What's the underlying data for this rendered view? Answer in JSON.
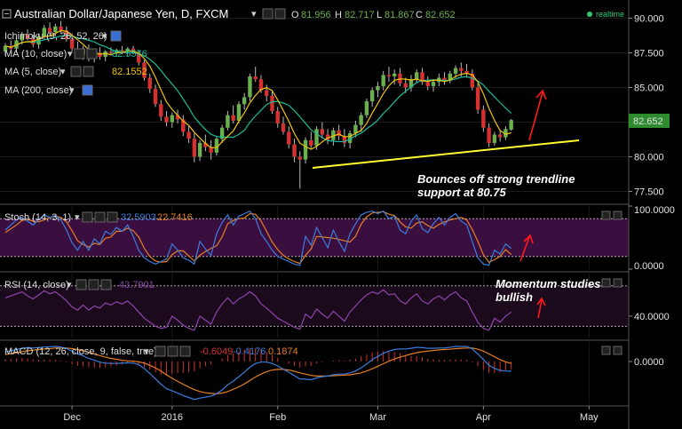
{
  "header": {
    "symbol": "Australian Dollar/Japanese Yen, D, FXCM",
    "o_label": "O",
    "o": "81.956",
    "h_label": "H",
    "h": "82.717",
    "l_label": "L",
    "l": "81.867",
    "c_label": "C",
    "c": "82.652",
    "realtime": "realtime"
  },
  "indicators": {
    "ichimoku": "Ichimoku (9, 26, 52, 26)",
    "ma10": "MA (10, close)",
    "ma10_value": "82.5576",
    "ma5": "MA (5, close)",
    "ma5_value": "82.1552",
    "ma200": "MA (200, close)",
    "stoch": "Stoch (14, 3, 1)",
    "stoch_k": "32.5903",
    "stoch_d": "22.7416",
    "rsi": "RSI (14, close)",
    "rsi_value": "43.7901",
    "macd": "MACD (12, 26, close, 9, false, true)",
    "macd_hist": "-0.6049",
    "macd_signal": "-0.4176",
    "macd_line": "0.1874"
  },
  "annotations": {
    "bounce_line1": "Bounces off strong trendline",
    "bounce_line2": "support at 80.75",
    "momentum_line1": "Momentum studies",
    "momentum_line2": "bullish"
  },
  "colors": {
    "bg": "#000000",
    "up": "#6ab04c",
    "down": "#d63031",
    "ma_fast": "#f1c40f",
    "ma_slow": "#1abc9c",
    "trendline": "#ffff33",
    "stoch_k": "#3b7ddd",
    "stoch_d": "#e67e22",
    "rsi": "#8e44ad",
    "macd": "#3b7ddd",
    "signal": "#e67e22",
    "arrow": "#ff1a1a",
    "price_tag": "#2e8b2e",
    "band": "#3a0f3f"
  },
  "chart_data": {
    "type": "candlestick",
    "x_ticks": [
      "Dec",
      "2016",
      "Feb",
      "Mar",
      "Apr",
      "May"
    ],
    "price_axis": {
      "ticks": [
        "90.000",
        "87.500",
        "85.000",
        "82.500",
        "80.000",
        "77.500"
      ],
      "range": [
        76.7,
        90.8
      ]
    },
    "last_price": "82.652",
    "trendline_support": 80.75,
    "candles": [
      [
        87.6,
        88.2,
        87.3,
        88.0
      ],
      [
        88.0,
        88.4,
        87.6,
        87.8
      ],
      [
        87.8,
        88.6,
        87.5,
        88.4
      ],
      [
        88.4,
        89.0,
        88.1,
        88.8
      ],
      [
        88.8,
        89.2,
        88.4,
        88.5
      ],
      [
        88.5,
        88.8,
        87.9,
        88.1
      ],
      [
        88.1,
        88.9,
        87.8,
        88.7
      ],
      [
        88.7,
        89.5,
        88.5,
        89.3
      ],
      [
        89.3,
        89.7,
        88.8,
        89.0
      ],
      [
        89.0,
        89.6,
        88.7,
        89.4
      ],
      [
        89.4,
        89.8,
        88.9,
        89.1
      ],
      [
        89.1,
        89.4,
        88.3,
        88.5
      ],
      [
        88.5,
        88.9,
        87.6,
        87.8
      ],
      [
        87.8,
        88.3,
        87.1,
        87.4
      ],
      [
        87.4,
        88.0,
        87.0,
        87.8
      ],
      [
        87.8,
        88.1,
        86.9,
        87.1
      ],
      [
        87.1,
        87.7,
        86.8,
        87.5
      ],
      [
        87.5,
        87.9,
        87.0,
        87.2
      ],
      [
        87.2,
        87.7,
        86.9,
        87.6
      ],
      [
        87.6,
        87.9,
        87.3,
        87.5
      ],
      [
        87.5,
        87.8,
        87.2,
        87.7
      ],
      [
        87.7,
        88.0,
        87.4,
        87.6
      ],
      [
        87.6,
        87.9,
        87.3,
        87.8
      ],
      [
        87.8,
        88.0,
        87.4,
        87.5
      ],
      [
        87.5,
        87.7,
        86.6,
        86.8
      ],
      [
        86.8,
        87.0,
        85.5,
        85.7
      ],
      [
        85.7,
        86.0,
        84.6,
        84.9
      ],
      [
        84.9,
        85.2,
        83.6,
        83.8
      ],
      [
        83.8,
        84.1,
        82.6,
        82.9
      ],
      [
        82.9,
        83.3,
        82.2,
        82.5
      ],
      [
        82.5,
        83.2,
        82.1,
        83.0
      ],
      [
        83.0,
        83.4,
        82.4,
        82.7
      ],
      [
        82.7,
        83.0,
        81.5,
        81.8
      ],
      [
        81.8,
        82.2,
        81.0,
        81.3
      ],
      [
        81.3,
        81.7,
        79.6,
        80.0
      ],
      [
        80.0,
        81.2,
        79.7,
        81.0
      ],
      [
        81.0,
        81.6,
        80.4,
        80.7
      ],
      [
        80.7,
        81.2,
        79.8,
        80.3
      ],
      [
        80.3,
        81.5,
        80.1,
        81.3
      ],
      [
        81.3,
        82.3,
        81.0,
        82.1
      ],
      [
        82.1,
        83.3,
        81.9,
        83.0
      ],
      [
        83.0,
        83.7,
        82.4,
        82.6
      ],
      [
        82.6,
        84.0,
        82.4,
        83.8
      ],
      [
        83.8,
        84.6,
        83.4,
        84.3
      ],
      [
        84.3,
        86.0,
        84.0,
        85.8
      ],
      [
        85.8,
        86.5,
        85.4,
        85.6
      ],
      [
        85.6,
        85.9,
        84.6,
        84.8
      ],
      [
        84.8,
        85.2,
        84.0,
        84.4
      ],
      [
        84.4,
        84.7,
        83.1,
        83.3
      ],
      [
        83.3,
        83.6,
        82.1,
        82.4
      ],
      [
        82.4,
        82.9,
        81.6,
        81.8
      ],
      [
        81.8,
        82.2,
        80.6,
        80.9
      ],
      [
        80.9,
        81.3,
        79.6,
        80.0
      ],
      [
        80.0,
        80.4,
        77.7,
        79.8
      ],
      [
        79.8,
        81.4,
        79.5,
        81.2
      ],
      [
        81.2,
        81.8,
        80.6,
        80.8
      ],
      [
        80.8,
        82.2,
        80.5,
        82.0
      ],
      [
        82.0,
        82.5,
        81.3,
        81.6
      ],
      [
        81.6,
        82.0,
        80.9,
        81.2
      ],
      [
        81.2,
        82.1,
        80.8,
        81.9
      ],
      [
        81.9,
        82.3,
        81.2,
        81.5
      ],
      [
        81.5,
        82.0,
        80.7,
        81.0
      ],
      [
        81.0,
        81.9,
        80.6,
        81.7
      ],
      [
        81.7,
        82.6,
        81.4,
        82.3
      ],
      [
        82.3,
        83.2,
        81.8,
        83.0
      ],
      [
        83.0,
        84.2,
        82.8,
        84.0
      ],
      [
        84.0,
        85.0,
        83.6,
        84.8
      ],
      [
        84.8,
        85.4,
        84.3,
        85.1
      ],
      [
        85.1,
        86.2,
        84.8,
        85.9
      ],
      [
        85.9,
        86.5,
        85.4,
        85.8
      ],
      [
        85.8,
        86.3,
        85.2,
        86.0
      ],
      [
        86.0,
        86.4,
        85.1,
        85.3
      ],
      [
        85.3,
        85.7,
        84.6,
        85.0
      ],
      [
        85.0,
        85.9,
        84.7,
        85.6
      ],
      [
        85.6,
        86.3,
        85.3,
        86.1
      ],
      [
        86.1,
        86.4,
        85.2,
        85.4
      ],
      [
        85.4,
        85.8,
        84.8,
        85.1
      ],
      [
        85.1,
        85.6,
        84.7,
        85.4
      ],
      [
        85.4,
        86.0,
        85.1,
        85.7
      ],
      [
        85.7,
        86.1,
        85.2,
        85.5
      ],
      [
        85.5,
        86.2,
        85.3,
        86.0
      ],
      [
        86.0,
        86.6,
        85.7,
        86.4
      ],
      [
        86.4,
        86.8,
        85.8,
        86.2
      ],
      [
        86.2,
        86.7,
        85.7,
        86.0
      ],
      [
        86.0,
        86.3,
        84.8,
        85.0
      ],
      [
        85.0,
        85.3,
        83.1,
        83.4
      ],
      [
        83.4,
        83.7,
        81.8,
        82.1
      ],
      [
        82.1,
        82.4,
        80.7,
        81.0
      ],
      [
        81.0,
        81.8,
        80.8,
        81.6
      ],
      [
        81.6,
        81.9,
        81.1,
        81.4
      ],
      [
        81.4,
        82.2,
        81.2,
        82.0
      ],
      [
        81.96,
        82.72,
        81.87,
        82.65
      ]
    ],
    "stochastic": {
      "axis": {
        "ticks": [
          "100.0000",
          "0.0000"
        ],
        "range": [
          0,
          100
        ]
      },
      "band": [
        20,
        80
      ],
      "k": [
        62,
        70,
        78,
        82,
        76,
        70,
        79,
        86,
        82,
        85,
        78,
        62,
        42,
        30,
        44,
        30,
        48,
        40,
        60,
        55,
        66,
        60,
        70,
        52,
        30,
        18,
        12,
        8,
        12,
        16,
        40,
        30,
        18,
        14,
        8,
        44,
        32,
        22,
        56,
        74,
        86,
        70,
        84,
        88,
        92,
        80,
        56,
        44,
        30,
        20,
        16,
        12,
        8,
        6,
        52,
        38,
        66,
        50,
        34,
        62,
        44,
        28,
        56,
        72,
        86,
        90,
        92,
        88,
        92,
        80,
        84,
        62,
        56,
        76,
        86,
        64,
        58,
        72,
        82,
        70,
        82,
        88,
        76,
        70,
        44,
        18,
        8,
        6,
        30,
        24,
        40,
        33
      ],
      "d": [
        58,
        64,
        70,
        77,
        79,
        76,
        75,
        78,
        82,
        84,
        82,
        75,
        61,
        45,
        39,
        35,
        41,
        39,
        49,
        51,
        60,
        60,
        65,
        61,
        51,
        33,
        20,
        13,
        11,
        12,
        23,
        29,
        29,
        21,
        13,
        22,
        28,
        33,
        37,
        51,
        72,
        77,
        80,
        81,
        88,
        87,
        76,
        60,
        43,
        31,
        22,
        16,
        12,
        9,
        22,
        32,
        52,
        51,
        50,
        49,
        47,
        45,
        43,
        52,
        71,
        83,
        89,
        90,
        91,
        87,
        85,
        75,
        67,
        65,
        73,
        75,
        69,
        65,
        71,
        75,
        78,
        80,
        82,
        78,
        63,
        44,
        23,
        11,
        15,
        20,
        31,
        23
      ]
    },
    "rsi": {
      "axis": {
        "ticks": [
          "40.0000"
        ],
        "range": [
          18,
          82
        ]
      },
      "band": [
        30,
        70
      ],
      "values": [
        58,
        60,
        62,
        64,
        60,
        57,
        61,
        65,
        62,
        64,
        60,
        55,
        49,
        46,
        51,
        46,
        50,
        48,
        53,
        51,
        54,
        52,
        55,
        50,
        44,
        38,
        34,
        30,
        28,
        29,
        40,
        36,
        31,
        28,
        26,
        40,
        36,
        32,
        44,
        52,
        58,
        52,
        57,
        60,
        64,
        60,
        52,
        48,
        43,
        38,
        35,
        32,
        29,
        27,
        42,
        38,
        47,
        42,
        38,
        45,
        40,
        35,
        44,
        50,
        56,
        61,
        64,
        62,
        66,
        61,
        62,
        55,
        52,
        58,
        62,
        55,
        52,
        57,
        60,
        56,
        61,
        64,
        58,
        55,
        44,
        34,
        28,
        26,
        38,
        34,
        40,
        44
      ]
    },
    "macd": {
      "axis": {
        "ticks": [
          "0.0000"
        ],
        "range": [
          -1.35,
          0.62
        ]
      },
      "macd": [
        0.3,
        0.34,
        0.38,
        0.42,
        0.44,
        0.43,
        0.44,
        0.46,
        0.47,
        0.48,
        0.46,
        0.41,
        0.33,
        0.24,
        0.18,
        0.1,
        0.04,
        -0.02,
        -0.05,
        -0.06,
        -0.06,
        -0.05,
        -0.04,
        -0.05,
        -0.1,
        -0.22,
        -0.38,
        -0.55,
        -0.72,
        -0.86,
        -0.93,
        -1.0,
        -1.08,
        -1.14,
        -1.2,
        -1.16,
        -1.13,
        -1.1,
        -1.02,
        -0.9,
        -0.74,
        -0.62,
        -0.48,
        -0.34,
        -0.18,
        -0.06,
        -0.02,
        -0.02,
        -0.06,
        -0.14,
        -0.24,
        -0.34,
        -0.45,
        -0.55,
        -0.56,
        -0.58,
        -0.52,
        -0.48,
        -0.46,
        -0.42,
        -0.4,
        -0.4,
        -0.36,
        -0.3,
        -0.2,
        -0.08,
        0.06,
        0.16,
        0.26,
        0.33,
        0.38,
        0.4,
        0.4,
        0.42,
        0.45,
        0.44,
        0.42,
        0.42,
        0.43,
        0.43,
        0.45,
        0.48,
        0.48,
        0.48,
        0.4,
        0.24,
        0.06,
        -0.12,
        -0.22,
        -0.28,
        -0.3,
        -0.31
      ],
      "signal": [
        0.22,
        0.25,
        0.28,
        0.31,
        0.34,
        0.36,
        0.38,
        0.4,
        0.41,
        0.43,
        0.43,
        0.43,
        0.41,
        0.38,
        0.34,
        0.29,
        0.24,
        0.19,
        0.14,
        0.1,
        0.07,
        0.04,
        0.02,
        0.01,
        -0.01,
        -0.05,
        -0.12,
        -0.2,
        -0.3,
        -0.42,
        -0.53,
        -0.63,
        -0.72,
        -0.81,
        -0.89,
        -0.95,
        -0.99,
        -1.01,
        -1.02,
        -1.0,
        -0.95,
        -0.88,
        -0.8,
        -0.71,
        -0.6,
        -0.49,
        -0.4,
        -0.32,
        -0.27,
        -0.25,
        -0.25,
        -0.27,
        -0.31,
        -0.36,
        -0.4,
        -0.44,
        -0.46,
        -0.46,
        -0.46,
        -0.45,
        -0.44,
        -0.43,
        -0.42,
        -0.39,
        -0.36,
        -0.3,
        -0.23,
        -0.15,
        -0.07,
        0.01,
        0.08,
        0.14,
        0.19,
        0.24,
        0.28,
        0.31,
        0.33,
        0.35,
        0.37,
        0.38,
        0.39,
        0.41,
        0.42,
        0.43,
        0.43,
        0.39,
        0.33,
        0.24,
        0.15,
        0.06,
        -0.01,
        -0.06
      ],
      "hist": [
        0.08,
        0.09,
        0.1,
        0.11,
        0.1,
        0.07,
        0.06,
        0.06,
        0.06,
        0.05,
        0.03,
        -0.02,
        -0.08,
        -0.14,
        -0.16,
        -0.19,
        -0.2,
        -0.21,
        -0.19,
        -0.16,
        -0.13,
        -0.09,
        -0.06,
        -0.06,
        -0.09,
        -0.17,
        -0.26,
        -0.35,
        -0.42,
        -0.44,
        -0.4,
        -0.37,
        -0.36,
        -0.33,
        -0.31,
        -0.21,
        -0.14,
        -0.09,
        0.0,
        0.1,
        0.21,
        0.26,
        0.32,
        0.37,
        0.42,
        0.43,
        0.38,
        0.3,
        0.21,
        0.11,
        0.01,
        -0.07,
        -0.14,
        -0.19,
        -0.16,
        -0.14,
        -0.06,
        -0.02,
        0.0,
        0.03,
        0.04,
        0.03,
        0.06,
        0.09,
        0.16,
        0.22,
        0.29,
        0.31,
        0.33,
        0.32,
        0.3,
        0.26,
        0.21,
        0.18,
        0.17,
        0.13,
        0.09,
        0.07,
        0.06,
        0.05,
        0.06,
        0.07,
        0.06,
        0.05,
        -0.03,
        -0.15,
        -0.27,
        -0.36,
        -0.37,
        -0.34,
        -0.29,
        -0.25
      ]
    }
  }
}
